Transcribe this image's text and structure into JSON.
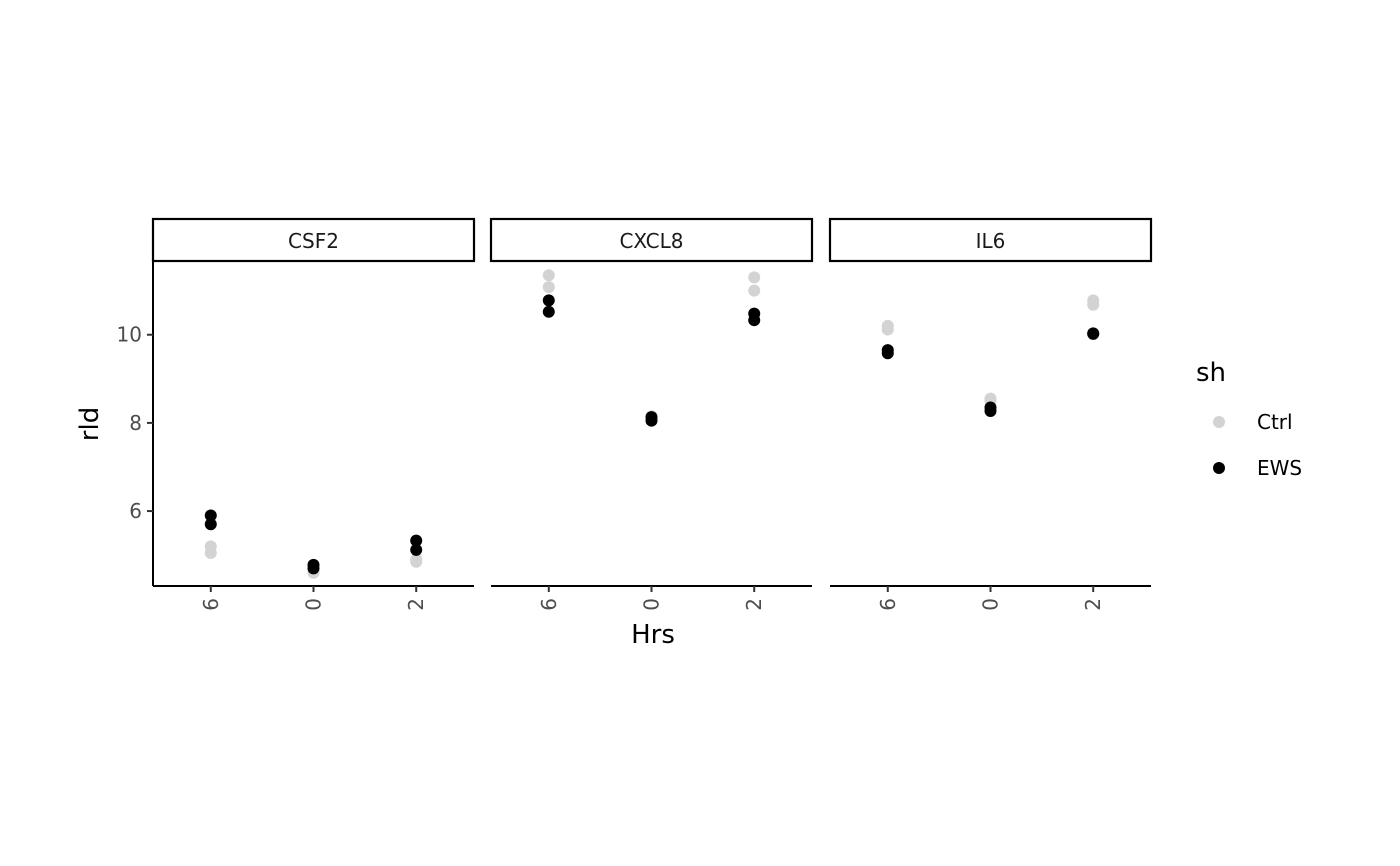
{
  "chart_data": {
    "type": "scatter",
    "facets": [
      "CSF2",
      "CXCL8",
      "IL6"
    ],
    "categories": [
      "6",
      "0",
      "2"
    ],
    "xlabel": "Hrs",
    "ylabel": "rld",
    "yticks": [
      6,
      8,
      10
    ],
    "ylim": [
      4.3,
      11.65
    ],
    "legend": {
      "title": "sh",
      "placement": "right",
      "items": [
        {
          "name": "Ctrl",
          "color": "#d3d3d3"
        },
        {
          "name": "EWS",
          "color": "#000000"
        }
      ]
    },
    "series": [
      {
        "name": "Ctrl",
        "color": "#d3d3d3",
        "points": {
          "CSF2": {
            "6": [
              5.2,
              5.05
            ],
            "0": [
              4.65,
              4.6
            ],
            "2": [
              4.9,
              4.85
            ]
          },
          "CXCL8": {
            "6": [
              11.35,
              11.08
            ],
            "0": [
              8.15,
              8.08
            ],
            "2": [
              11.3,
              11.0
            ]
          },
          "IL6": {
            "6": [
              10.2,
              10.12
            ],
            "0": [
              8.55,
              8.5
            ],
            "2": [
              10.78,
              10.68
            ]
          }
        }
      },
      {
        "name": "EWS",
        "color": "#000000",
        "points": {
          "CSF2": {
            "6": [
              5.9,
              5.7
            ],
            "0": [
              4.78,
              4.7
            ],
            "2": [
              5.33,
              5.12
            ]
          },
          "CXCL8": {
            "6": [
              10.78,
              10.52
            ],
            "0": [
              8.13,
              8.05
            ],
            "2": [
              10.48,
              10.33
            ]
          },
          "IL6": {
            "6": [
              9.65,
              9.58
            ],
            "0": [
              8.35,
              8.27
            ],
            "2": [
              10.03,
              10.02
            ]
          }
        }
      }
    ]
  }
}
